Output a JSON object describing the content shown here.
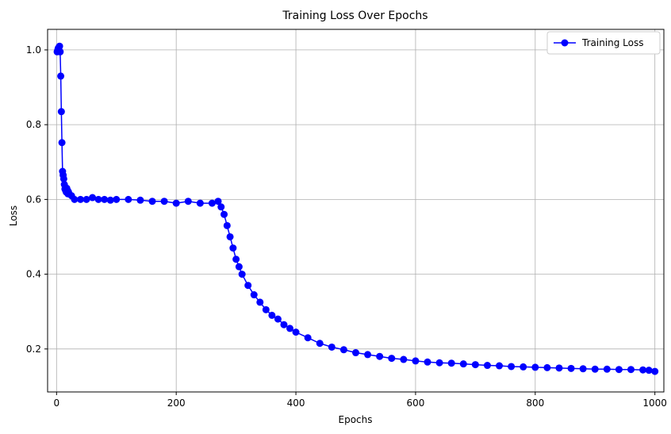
{
  "chart_data": {
    "type": "line",
    "title": "Training Loss Over Epochs",
    "xlabel": "Epochs",
    "ylabel": "Loss",
    "xlim": [
      -15,
      1015
    ],
    "ylim": [
      0.085,
      1.055
    ],
    "xticks": [
      0,
      200,
      400,
      600,
      800,
      1000
    ],
    "yticks": [
      0.2,
      0.4,
      0.6,
      0.8,
      1.0
    ],
    "ytick_labels": [
      "0.2",
      "0.4",
      "0.6",
      "0.8",
      "1.0"
    ],
    "grid": true,
    "legend_position": "top-right",
    "series": [
      {
        "name": "Training Loss",
        "color": "#0000ff",
        "marker": "circle",
        "x": [
          1,
          2,
          3,
          4,
          5,
          6,
          7,
          8,
          9,
          10,
          11,
          12,
          13,
          14,
          15,
          16,
          17,
          18,
          19,
          20,
          25,
          30,
          40,
          50,
          60,
          70,
          80,
          90,
          100,
          120,
          140,
          160,
          180,
          200,
          220,
          240,
          260,
          270,
          275,
          280,
          285,
          290,
          295,
          300,
          305,
          310,
          320,
          330,
          340,
          350,
          360,
          370,
          380,
          390,
          400,
          420,
          440,
          460,
          480,
          500,
          520,
          540,
          560,
          580,
          600,
          620,
          640,
          660,
          680,
          700,
          720,
          740,
          760,
          780,
          800,
          820,
          840,
          860,
          880,
          900,
          920,
          940,
          960,
          980,
          990,
          1000
        ],
        "y": [
          0.995,
          1.0,
          1.005,
          1.0,
          1.01,
          0.995,
          0.93,
          0.835,
          0.752,
          0.675,
          0.665,
          0.655,
          0.64,
          0.628,
          0.625,
          0.62,
          0.63,
          0.625,
          0.615,
          0.62,
          0.61,
          0.6,
          0.6,
          0.6,
          0.605,
          0.6,
          0.6,
          0.598,
          0.6,
          0.6,
          0.598,
          0.595,
          0.595,
          0.59,
          0.595,
          0.59,
          0.59,
          0.595,
          0.58,
          0.56,
          0.53,
          0.5,
          0.47,
          0.44,
          0.42,
          0.4,
          0.37,
          0.345,
          0.325,
          0.305,
          0.29,
          0.28,
          0.265,
          0.255,
          0.245,
          0.23,
          0.215,
          0.205,
          0.198,
          0.19,
          0.185,
          0.18,
          0.175,
          0.172,
          0.168,
          0.165,
          0.163,
          0.162,
          0.16,
          0.158,
          0.156,
          0.155,
          0.153,
          0.152,
          0.151,
          0.15,
          0.149,
          0.148,
          0.147,
          0.146,
          0.146,
          0.145,
          0.145,
          0.144,
          0.143,
          0.14
        ]
      }
    ]
  }
}
